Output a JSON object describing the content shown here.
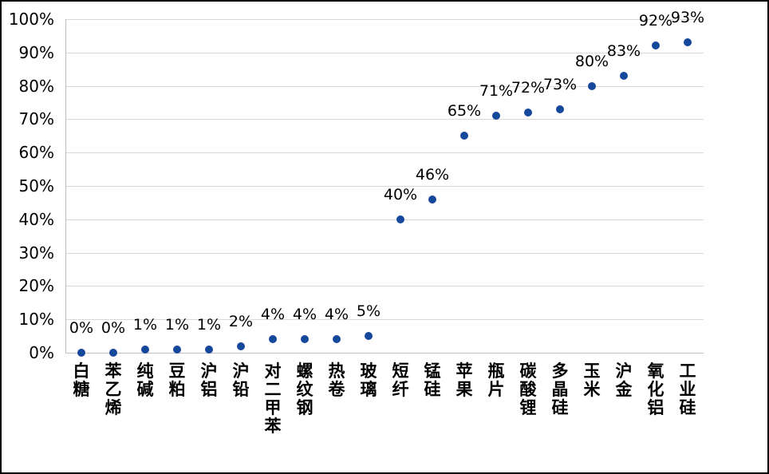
{
  "chart_data": {
    "type": "scatter",
    "title": "",
    "xlabel": "",
    "ylabel": "",
    "categories": [
      "白糖",
      "苯乙烯",
      "纯碱",
      "豆粕",
      "沪铝",
      "沪铅",
      "对二甲苯",
      "螺纹钢",
      "热卷",
      "玻璃",
      "短纤",
      "锰硅",
      "苹果",
      "瓶片",
      "碳酸锂",
      "多晶硅",
      "玉米",
      "沪金",
      "氧化铝",
      "工业硅"
    ],
    "values": [
      0,
      0,
      1,
      1,
      1,
      2,
      4,
      4,
      4,
      5,
      40,
      46,
      65,
      71,
      72,
      73,
      80,
      83,
      92,
      93
    ],
    "data_labels": [
      "0%",
      "0%",
      "1%",
      "1%",
      "1%",
      "2%",
      "4%",
      "4%",
      "4%",
      "5%",
      "40%",
      "46%",
      "65%",
      "71%",
      "72%",
      "73%",
      "80%",
      "83%",
      "92%",
      "93%"
    ],
    "ylim": [
      0,
      100
    ],
    "y_ticks": [
      "0%",
      "10%",
      "20%",
      "30%",
      "40%",
      "50%",
      "60%",
      "70%",
      "80%",
      "90%",
      "100%"
    ],
    "grid": true,
    "legend": false,
    "marker_color": "#15479d",
    "gridline_color": "#d9d9d9",
    "axis_color": "#bfbfbf",
    "text_color": "#000000"
  }
}
